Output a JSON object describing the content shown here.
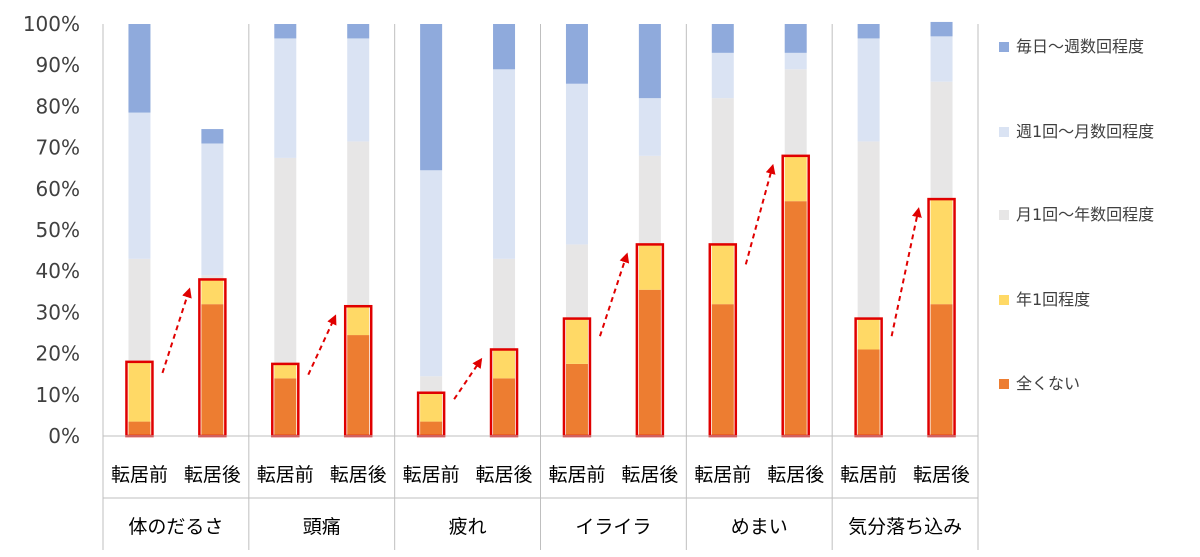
{
  "chart_data": {
    "type": "bar",
    "stacked": true,
    "ylim": [
      0,
      100
    ],
    "y_ticks": [
      "0%",
      "10%",
      "20%",
      "30%",
      "40%",
      "50%",
      "60%",
      "70%",
      "80%",
      "90%",
      "100%"
    ],
    "groups": [
      "体のだるさ",
      "頭痛",
      "疲れ",
      "イライラ",
      "めまい",
      "気分落ち込み"
    ],
    "bar_labels": [
      "転居前",
      "転居後"
    ],
    "categories": [
      "体のだるさ 転居前",
      "体のだるさ 転居後",
      "頭痛 転居前",
      "頭痛 転居後",
      "疲れ 転居前",
      "疲れ 転居後",
      "イライラ 転居前",
      "イライラ 転居後",
      "めまい 転居前",
      "めまい 転居後",
      "気分落ち込み 転居前",
      "気分落ち込み 転居後"
    ],
    "series": [
      {
        "name": "全くない",
        "color": "#ED7D31",
        "values": [
          3.5,
          32,
          14,
          24.5,
          3.5,
          14,
          17.5,
          35.5,
          32,
          57,
          21,
          32
        ]
      },
      {
        "name": "年1回程度",
        "color": "#FFD966",
        "values": [
          14.5,
          6,
          3.5,
          7,
          7,
          7,
          11,
          11,
          14.5,
          11,
          7.5,
          25.5
        ]
      },
      {
        "name": "月1回～年数回程度",
        "color": "#E7E6E6",
        "values": [
          25,
          1,
          50,
          40,
          4,
          22,
          18,
          21.5,
          35.5,
          21,
          43,
          28.5
        ]
      },
      {
        "name": "週1回～月数回程度",
        "color": "#DAE3F3",
        "values": [
          35.5,
          32,
          29,
          25,
          50,
          46,
          39,
          14,
          11,
          4,
          25,
          11
        ]
      },
      {
        "name": "毎日～週数回程度",
        "color": "#8FAADC",
        "values": [
          21.5,
          3.5,
          3.5,
          3.5,
          35.5,
          11,
          14.5,
          18,
          7,
          7,
          3.5,
          3.5
        ]
      }
    ],
    "legend_order": [
      "毎日～週数回程度",
      "週1回～月数回程度",
      "月1回～年数回程度",
      "年1回程度",
      "全くない"
    ],
    "legend_position": "right",
    "highlight": {
      "outline_color": "#E00000",
      "arrow_color": "#E00000",
      "arrow_style": "dashed"
    },
    "grid": false
  }
}
